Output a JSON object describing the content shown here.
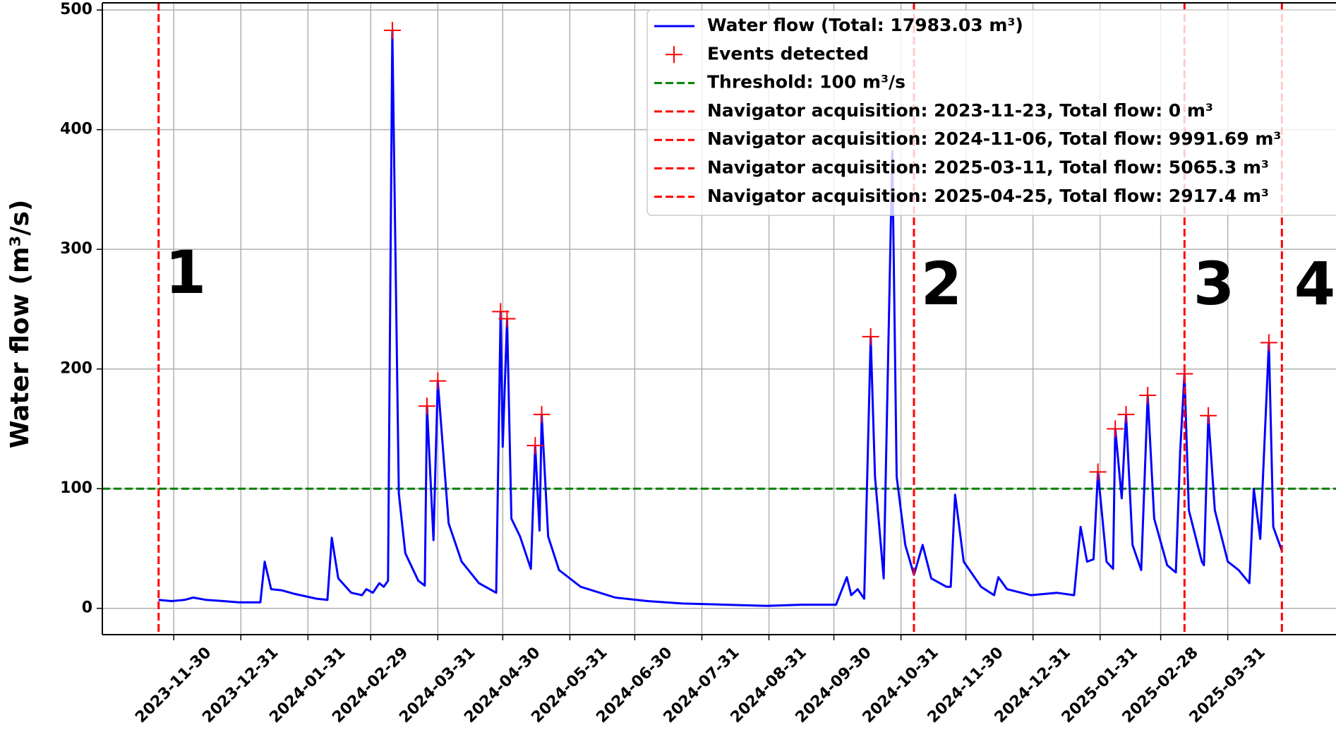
{
  "chart_data": {
    "type": "line",
    "ylabel": "Water flow (m³/s)",
    "xlim": [
      "2023-10-28",
      "2025-05-20"
    ],
    "ylim": [
      -22,
      506
    ],
    "yticks": [
      0,
      100,
      200,
      300,
      400,
      500
    ],
    "xticks": [
      "2023-11-30",
      "2023-12-31",
      "2024-01-31",
      "2024-02-29",
      "2024-03-31",
      "2024-04-30",
      "2024-05-31",
      "2024-06-30",
      "2024-07-31",
      "2024-08-31",
      "2024-09-30",
      "2024-10-31",
      "2024-11-30",
      "2024-12-31",
      "2025-01-31",
      "2025-02-28",
      "2025-03-31"
    ],
    "grid": true,
    "legend": "upper right",
    "series": [
      {
        "name": "Water flow (Total: 17983.03 m³)",
        "color": "#0000ff",
        "x": [
          "2023-11-23",
          "2023-11-29",
          "2023-12-05",
          "2023-12-09",
          "2023-12-15",
          "2023-12-23",
          "2023-12-30",
          "2024-01-09",
          "2024-01-11",
          "2024-01-14",
          "2024-01-19",
          "2024-01-25",
          "2024-02-04",
          "2024-02-09",
          "2024-02-11",
          "2024-02-14",
          "2024-02-20",
          "2024-02-25",
          "2024-02-27",
          "2024-03-01",
          "2024-03-04",
          "2024-03-06",
          "2024-03-08",
          "2024-03-10",
          "2024-03-13",
          "2024-03-16",
          "2024-03-22",
          "2024-03-25",
          "2024-03-26",
          "2024-03-29",
          "2024-03-31",
          "2024-04-05",
          "2024-04-11",
          "2024-04-19",
          "2024-04-27",
          "2024-04-29",
          "2024-04-30",
          "2024-05-02",
          "2024-05-04",
          "2024-05-08",
          "2024-05-13",
          "2024-05-15",
          "2024-05-17",
          "2024-05-18",
          "2024-05-21",
          "2024-05-26",
          "2024-06-05",
          "2024-06-21",
          "2024-07-06",
          "2024-07-22",
          "2024-08-11",
          "2024-08-30",
          "2024-09-15",
          "2024-10-01",
          "2024-10-06",
          "2024-10-08",
          "2024-10-11",
          "2024-10-14",
          "2024-10-17",
          "2024-10-19",
          "2024-10-23",
          "2024-10-27",
          "2024-10-29",
          "2024-11-02",
          "2024-11-06",
          "2024-11-10",
          "2024-11-14",
          "2024-11-21",
          "2024-11-23",
          "2024-11-25",
          "2024-11-29",
          "2024-12-07",
          "2024-12-13",
          "2024-12-15",
          "2024-12-19",
          "2024-12-30",
          "2025-01-11",
          "2025-01-19",
          "2025-01-22",
          "2025-01-25",
          "2025-01-28",
          "2025-01-30",
          "2025-02-03",
          "2025-02-06",
          "2025-02-07",
          "2025-02-10",
          "2025-02-12",
          "2025-02-15",
          "2025-02-19",
          "2025-02-22",
          "2025-02-25",
          "2025-03-03",
          "2025-03-07",
          "2025-03-09",
          "2025-03-11",
          "2025-03-13",
          "2025-03-19",
          "2025-03-20",
          "2025-03-22",
          "2025-03-25",
          "2025-03-31",
          "2025-04-05",
          "2025-04-10",
          "2025-04-12",
          "2025-04-15",
          "2025-04-19",
          "2025-04-21",
          "2025-04-25"
        ],
        "values": [
          7,
          6,
          7,
          9,
          7,
          6,
          5,
          5,
          39,
          16,
          15,
          12,
          8,
          7,
          59,
          25,
          13,
          11,
          16,
          13,
          21,
          18,
          23,
          483,
          96,
          46,
          23,
          19,
          169,
          57,
          190,
          71,
          39,
          21,
          13,
          248,
          135,
          242,
          75,
          60,
          33,
          136,
          65,
          162,
          60,
          32,
          18,
          9,
          6,
          4,
          3,
          2,
          3,
          3,
          26,
          11,
          16,
          8,
          227,
          110,
          25,
          382,
          110,
          53,
          28,
          53,
          25,
          18,
          18,
          95,
          39,
          18,
          11,
          26,
          16,
          11,
          13,
          11,
          68,
          39,
          41,
          114,
          39,
          33,
          150,
          92,
          162,
          53,
          32,
          178,
          75,
          36,
          30,
          131,
          196,
          82,
          39,
          36,
          161,
          82,
          39,
          32,
          21,
          100,
          58,
          222,
          68,
          48
        ]
      },
      {
        "name": "Events detected",
        "color": "#ff0000",
        "marker": "+",
        "x": [
          "2024-03-10",
          "2024-03-26",
          "2024-03-31",
          "2024-04-29",
          "2024-05-02",
          "2024-05-15",
          "2024-05-18",
          "2024-10-17",
          "2025-01-30",
          "2025-02-07",
          "2025-02-12",
          "2025-02-22",
          "2025-03-11",
          "2025-03-22",
          "2025-04-19"
        ],
        "values": [
          483,
          169,
          190,
          248,
          242,
          136,
          162,
          227,
          114,
          150,
          162,
          178,
          196,
          161,
          222
        ]
      }
    ],
    "threshold": {
      "name": "Threshold: 100 m³/s",
      "value": 100,
      "color": "#008000"
    },
    "vlines": [
      {
        "name": "Navigator acquisition: 2023-11-23, Total flow: 0 m³",
        "x": "2023-11-23",
        "color": "#ff0000"
      },
      {
        "name": "Navigator acquisition: 2024-11-06, Total flow: 9991.69 m³",
        "x": "2024-11-06",
        "color": "#ff0000"
      },
      {
        "name": "Navigator acquisition: 2025-03-11, Total flow: 5065.3 m³",
        "x": "2025-03-11",
        "color": "#ff0000"
      },
      {
        "name": "Navigator acquisition: 2025-04-25, Total flow: 2917.4 m³",
        "x": "2025-04-25",
        "color": "#ff0000"
      }
    ],
    "annotations": [
      "1",
      "2",
      "3",
      "4"
    ]
  }
}
